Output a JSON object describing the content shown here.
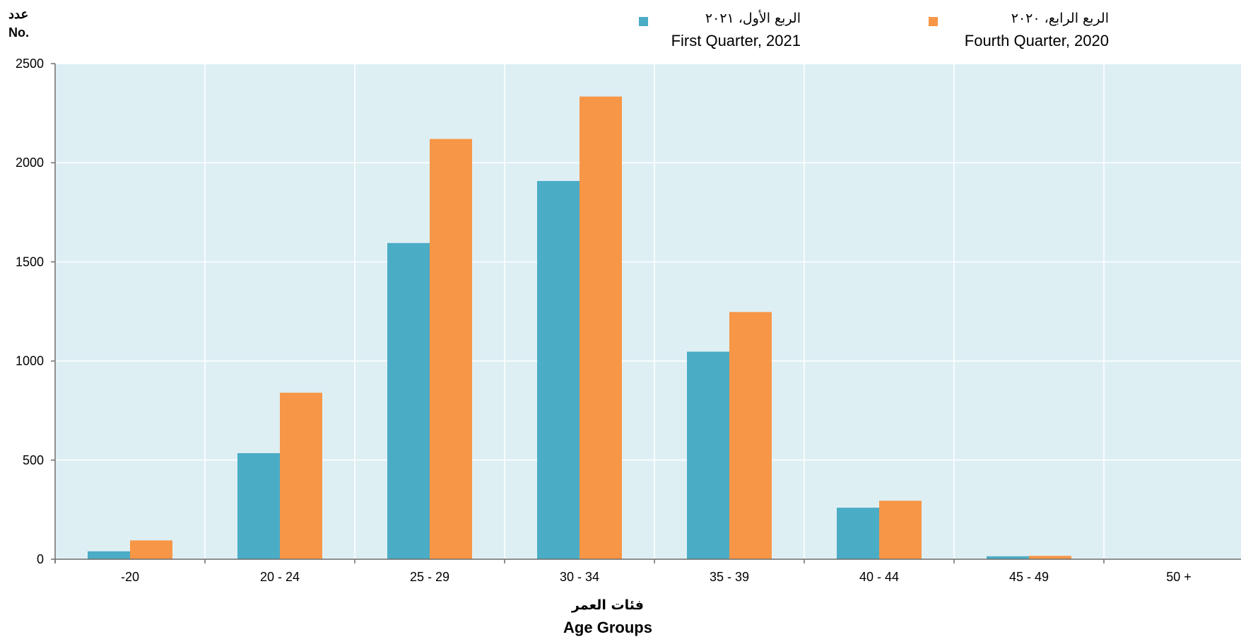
{
  "y_unit": {
    "ar": "عدد",
    "en": "No."
  },
  "legend": {
    "q1_2021": {
      "ar": "الربع الأول، ٢٠٢١",
      "en": "First Quarter, 2021",
      "color": "#4bacc6"
    },
    "q4_2020": {
      "ar": "الربع الرابع، ٢٠٢٠",
      "en": "Fourth Quarter, 2020",
      "color": "#f79646"
    }
  },
  "x_title": {
    "ar": "فئات العمر",
    "en": "Age Groups"
  },
  "chart_data": {
    "type": "bar",
    "categories": [
      "-20",
      "20 - 24",
      "25 - 29",
      "30 - 34",
      "35 - 39",
      "40 - 44",
      "45 - 49",
      "50 +"
    ],
    "series": [
      {
        "name": "First Quarter, 2021",
        "color": "#4bacc6",
        "values": [
          40,
          535,
          1595,
          1908,
          1047,
          260,
          15,
          0
        ]
      },
      {
        "name": "Fourth Quarter, 2020",
        "color": "#f79646",
        "values": [
          95,
          840,
          2120,
          2334,
          1247,
          295,
          17,
          0
        ]
      }
    ],
    "ylim": [
      0,
      2500
    ],
    "yticks": [
      0,
      500,
      1000,
      1500,
      2000,
      2500
    ],
    "grid": true,
    "plot_background": "#deeff4",
    "legend_position": "top"
  }
}
